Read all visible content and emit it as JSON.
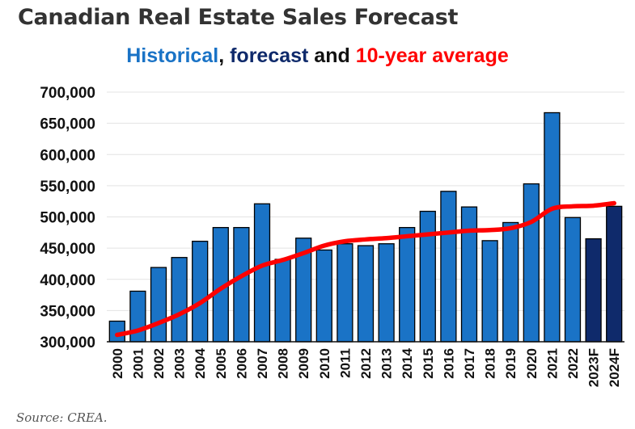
{
  "title": "Canadian Real Estate Sales Forecast",
  "subtitle": {
    "historical": "Historical",
    "sep1": ", ",
    "forecast": "forecast",
    "sep2": " and ",
    "average": "10-year average"
  },
  "source": "Source: CREA.",
  "colors": {
    "historical": "#1a73c6",
    "forecast": "#0f2a6b",
    "average": "#ff0000",
    "grid": "#e3e3e3"
  },
  "chart_data": {
    "type": "bar",
    "title": "Canadian Real Estate Sales Forecast",
    "subtitle": "Historical, forecast and 10-year average",
    "xlabel": "",
    "ylabel": "",
    "ylim": [
      300000,
      700000
    ],
    "yticks": [
      "700,000",
      "650,000",
      "600,000",
      "550,000",
      "500,000",
      "450,000",
      "400,000",
      "350,000",
      "300,000"
    ],
    "ytick_values": [
      700000,
      650000,
      600000,
      550000,
      500000,
      450000,
      400000,
      350000,
      300000
    ],
    "grid": true,
    "categories": [
      "2000",
      "2001",
      "2002",
      "2003",
      "2004",
      "2005",
      "2006",
      "2007",
      "2008",
      "2009",
      "2010",
      "2011",
      "2012",
      "2013",
      "2014",
      "2015",
      "2016",
      "2017",
      "2018",
      "2019",
      "2020",
      "2021",
      "2022",
      "2023F",
      "2024F"
    ],
    "series": [
      {
        "kind": "bar",
        "values": [
          333000,
          381000,
          419000,
          435000,
          461000,
          483000,
          483000,
          521000,
          432000,
          466000,
          447000,
          457000,
          454000,
          457000,
          483000,
          509000,
          541000,
          516000,
          462000,
          491000,
          553000,
          667000,
          499000,
          465000,
          517000
        ],
        "forecast_flags": [
          false,
          false,
          false,
          false,
          false,
          false,
          false,
          false,
          false,
          false,
          false,
          false,
          false,
          false,
          false,
          false,
          false,
          false,
          false,
          false,
          false,
          false,
          false,
          true,
          true
        ]
      },
      {
        "kind": "line",
        "values": [
          311000,
          318000,
          330000,
          344000,
          362000,
          385000,
          405000,
          422000,
          431000,
          442000,
          454000,
          461000,
          464000,
          466000,
          469000,
          472000,
          475000,
          478000,
          479000,
          482000,
          492000,
          513000,
          517000,
          518000,
          522000
        ]
      }
    ]
  }
}
